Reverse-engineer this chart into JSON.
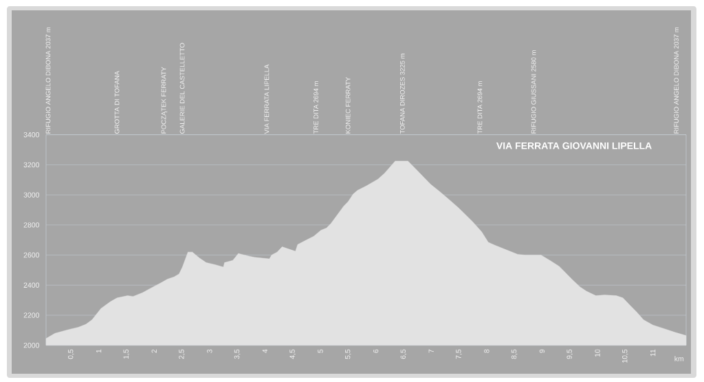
{
  "chart_data": {
    "type": "area",
    "title": "VIA FERRATA GIOVANNI LIPELLA",
    "xlabel": "km",
    "x": [
      0.05,
      0.21,
      0.46,
      0.63,
      0.77,
      0.88,
      1.04,
      1.21,
      1.33,
      1.52,
      1.62,
      1.79,
      1.99,
      2.12,
      2.24,
      2.36,
      2.45,
      2.51,
      2.61,
      2.69,
      2.82,
      2.94,
      3.11,
      3.25,
      3.27,
      3.42,
      3.52,
      3.69,
      3.81,
      4.08,
      4.12,
      4.22,
      4.31,
      4.43,
      4.55,
      4.59,
      4.72,
      4.88,
      5.01,
      5.11,
      5.19,
      5.38,
      5.42,
      5.5,
      5.59,
      5.67,
      5.83,
      6.04,
      6.16,
      6.35,
      6.58,
      6.74,
      6.99,
      7.16,
      7.32,
      7.49,
      7.74,
      7.91,
      8.03,
      8.15,
      8.32,
      8.56,
      8.69,
      8.98,
      9.14,
      9.31,
      9.43,
      9.55,
      9.68,
      9.8,
      9.97,
      10.13,
      10.34,
      10.46,
      10.59,
      10.71,
      10.83,
      11.0,
      11.21,
      11.41,
      11.6
    ],
    "values": [
      2045,
      2080,
      2105,
      2120,
      2140,
      2170,
      2245,
      2290,
      2315,
      2330,
      2325,
      2350,
      2390,
      2415,
      2440,
      2455,
      2475,
      2520,
      2620,
      2620,
      2580,
      2550,
      2535,
      2520,
      2550,
      2565,
      2610,
      2595,
      2585,
      2575,
      2600,
      2620,
      2655,
      2640,
      2625,
      2670,
      2695,
      2725,
      2765,
      2780,
      2810,
      2905,
      2925,
      2955,
      3005,
      3030,
      3060,
      3105,
      3145,
      3225,
      3225,
      3165,
      3070,
      3020,
      2970,
      2915,
      2825,
      2755,
      2685,
      2665,
      2640,
      2605,
      2600,
      2600,
      2565,
      2525,
      2480,
      2435,
      2390,
      2360,
      2330,
      2335,
      2330,
      2315,
      2265,
      2220,
      2170,
      2135,
      2110,
      2085,
      2065
    ],
    "color": "#e2e2e2",
    "xlim": [
      0.05,
      11.6
    ],
    "ylim": [
      2000,
      3400
    ],
    "xticks": [
      {
        "value": 0.5,
        "label": "0,5"
      },
      1,
      {
        "value": 1.5,
        "label": "1,5"
      },
      2,
      {
        "value": 2.5,
        "label": "2,5"
      },
      3,
      {
        "value": 3.5,
        "label": "3,5"
      },
      4,
      {
        "value": 4.5,
        "label": "4,5"
      },
      5,
      {
        "value": 5.5,
        "label": "5,5"
      },
      6,
      {
        "value": 6.5,
        "label": "6,5"
      },
      7,
      {
        "value": 7.5,
        "label": "7,5"
      },
      8,
      {
        "value": 8.5,
        "label": "8,5"
      },
      9,
      {
        "value": 9.5,
        "label": "9,5"
      },
      10,
      {
        "value": 10.5,
        "label": "10,5"
      },
      11
    ],
    "yticks": [
      2000,
      2200,
      2400,
      2600,
      2800,
      3000,
      3200,
      3400
    ],
    "annotations": [
      "RIFUGIO ANGELO DIBONA 2037 m",
      "GROTTA DI TOFANA",
      "POCZĄTEK FERRATY",
      "GALERIE DEL CASTELLETTO",
      "VIA FERRATA LIPELLA",
      "TRE DITA 2694 m",
      "KONIEC FERRATY",
      "TOFANA DIROZES 3225 m",
      "TRE DITA 2694 m",
      "RIFUGIO GIUSSANI 2580 m",
      "RIFUGIO ANGELO DIBONA 2037 m"
    ],
    "grid": "y"
  }
}
